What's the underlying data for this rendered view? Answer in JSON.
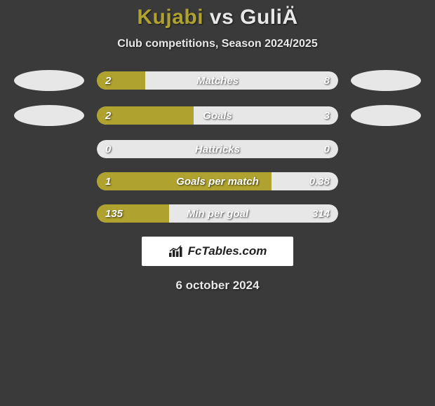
{
  "title": {
    "player1": "Kujabi",
    "vs": "vs",
    "player2": "GuliÄ"
  },
  "subtitle": "Club competitions, Season 2024/2025",
  "colors": {
    "player1": "#b0a22e",
    "player2": "#e7e7e7",
    "avatar1": "#e7e7e7",
    "avatar2": "#e7e7e7",
    "text": "#ffffff",
    "background": "#3a3a3a"
  },
  "stats": [
    {
      "label": "Matches",
      "left_val": "2",
      "right_val": "8",
      "left_num": 2,
      "right_num": 8,
      "fill_pct": 20
    },
    {
      "label": "Goals",
      "left_val": "2",
      "right_val": "3",
      "left_num": 2,
      "right_num": 3,
      "fill_pct": 40
    },
    {
      "label": "Hattricks",
      "left_val": "0",
      "right_val": "0",
      "left_num": 0,
      "right_num": 0,
      "fill_pct": 0
    },
    {
      "label": "Goals per match",
      "left_val": "1",
      "right_val": "0.38",
      "left_num": 1,
      "right_num": 0.38,
      "fill_pct": 72.5
    },
    {
      "label": "Min per goal",
      "left_val": "135",
      "right_val": "314",
      "left_num": 135,
      "right_num": 314,
      "fill_pct": 30
    }
  ],
  "brand": "FcTables.com",
  "date": "6 october 2024"
}
